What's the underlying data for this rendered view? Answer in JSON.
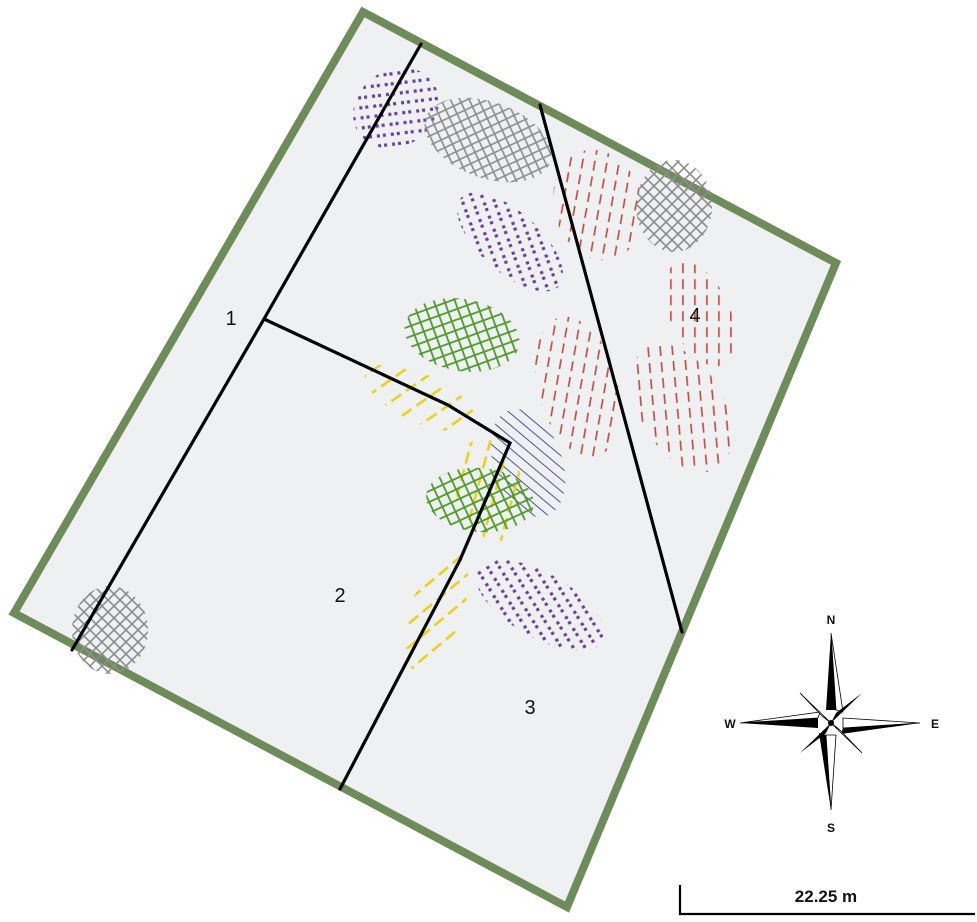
{
  "map": {
    "zones": [
      {
        "label": "1"
      },
      {
        "label": "2"
      },
      {
        "label": "3"
      },
      {
        "label": "4"
      }
    ],
    "compass": {
      "north": "N",
      "south": "S",
      "east": "E",
      "west": "W"
    },
    "scale_bar": {
      "label": "22.25 m"
    },
    "colors": {
      "border": "#6e8b5a",
      "field": "#eff0f2",
      "boundary": "#000000",
      "purple_dots": "#6a3fa0",
      "gray_cross": "#8c8c8c",
      "red_dash": "#c0473a",
      "green_cross": "#4c9a2a",
      "yellow_dash": "#e8d21c",
      "blue_lines": "#3a3f9a"
    }
  }
}
